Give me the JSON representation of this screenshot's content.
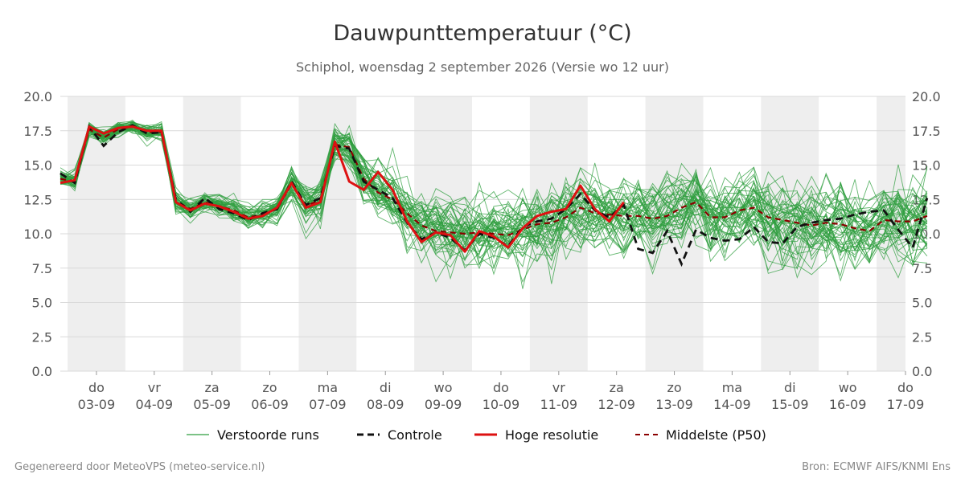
{
  "chart_data": {
    "type": "line",
    "title": "Dauwpunttemperatuur (°C)",
    "subtitle": "Schiphol, woensdag  2 september 2026 (Versie wo 12 uur)",
    "ylim": [
      0,
      20
    ],
    "yticks": [
      "0.0",
      "2.5",
      "5.0",
      "7.5",
      "10.0",
      "12.5",
      "15.0",
      "17.5",
      "20.0"
    ],
    "grid": true,
    "x_start": "2026-09-02T21:00",
    "x_end": "2026-09-17T12:00",
    "x_step_hours": 6,
    "days": [
      {
        "day": "do",
        "date": "03-09"
      },
      {
        "day": "vr",
        "date": "04-09"
      },
      {
        "day": "za",
        "date": "05-09"
      },
      {
        "day": "zo",
        "date": "06-09"
      },
      {
        "day": "ma",
        "date": "07-09"
      },
      {
        "day": "di",
        "date": "08-09"
      },
      {
        "day": "wo",
        "date": "09-09"
      },
      {
        "day": "do",
        "date": "10-09"
      },
      {
        "day": "vr",
        "date": "11-09"
      },
      {
        "day": "za",
        "date": "12-09"
      },
      {
        "day": "zo",
        "date": "13-09"
      },
      {
        "day": "ma",
        "date": "14-09"
      },
      {
        "day": "di",
        "date": "15-09"
      },
      {
        "day": "wo",
        "date": "16-09"
      },
      {
        "day": "do",
        "date": "17-09"
      }
    ],
    "legend": [
      {
        "key": "ensemble",
        "label": "Verstoorde runs"
      },
      {
        "key": "control",
        "label": "Controle"
      },
      {
        "key": "hires",
        "label": "Hoge resolutie"
      },
      {
        "key": "median",
        "label": "Middelste (P50)"
      }
    ],
    "colors": {
      "ensemble": "#2e9e3e",
      "control": "#111111",
      "hires": "#dd1111",
      "median": "#8b0000",
      "shade": "#eeeeee"
    },
    "series": [
      {
        "key": "hires",
        "values": [
          13.7,
          13.9,
          17.8,
          17.3,
          17.7,
          17.8,
          17.5,
          17.5,
          12.3,
          11.7,
          12.2,
          12.0,
          11.6,
          11.1,
          11.3,
          11.9,
          13.7,
          11.9,
          12.3,
          16.7,
          13.8,
          13.2,
          14.5,
          13.2,
          10.9,
          9.4,
          10.1,
          9.9,
          8.7,
          10.2,
          9.8,
          9.0,
          10.4,
          11.3,
          11.6,
          11.8,
          13.5,
          11.8,
          10.9,
          12.3
        ]
      },
      {
        "key": "control",
        "values": [
          14.4,
          13.7,
          17.8,
          16.4,
          17.4,
          17.9,
          17.3,
          17.4,
          12.5,
          11.6,
          12.6,
          11.8,
          11.5,
          11.0,
          11.5,
          11.8,
          13.8,
          12.1,
          12.6,
          16.4,
          16.2,
          13.8,
          13.2,
          12.6,
          10.8,
          9.6,
          10.1,
          9.7,
          8.8,
          10.0,
          9.7,
          9.1,
          10.5,
          10.9,
          11.1,
          11.8,
          12.9,
          11.7,
          11.2,
          12.1,
          8.9,
          8.6,
          10.2,
          7.8,
          10.3,
          9.7,
          9.5,
          9.6,
          10.5,
          9.4,
          9.3,
          10.5,
          10.8,
          11.0,
          11.1,
          11.4,
          11.6,
          11.7,
          10.3,
          9.0,
          12.6
        ]
      },
      {
        "key": "median",
        "values": [
          14.0,
          13.8,
          17.6,
          17.0,
          17.6,
          17.8,
          17.4,
          17.4,
          12.4,
          11.8,
          12.3,
          12.0,
          11.7,
          11.2,
          11.4,
          11.8,
          13.6,
          12.0,
          12.5,
          16.5,
          16.3,
          14.0,
          13.0,
          12.5,
          11.5,
          10.6,
          10.2,
          10.1,
          10.0,
          10.1,
          10.0,
          9.9,
          10.3,
          10.7,
          10.8,
          11.2,
          11.9,
          11.5,
          11.4,
          11.3,
          11.3,
          11.1,
          11.3,
          11.9,
          12.3,
          11.2,
          11.2,
          11.7,
          11.9,
          11.2,
          11.0,
          10.8,
          10.6,
          10.8,
          10.7,
          10.4,
          10.2,
          11.0,
          10.9,
          10.9,
          11.3
        ]
      }
    ],
    "ensemble": {
      "member_count": 50,
      "spread_sd": [
        0.5,
        0.5,
        0.4,
        0.4,
        0.4,
        0.4,
        0.5,
        0.5,
        0.6,
        0.6,
        0.6,
        0.6,
        0.7,
        0.7,
        0.7,
        0.8,
        1.0,
        1.0,
        1.1,
        1.2,
        1.4,
        1.5,
        1.6,
        1.7,
        1.8,
        1.9,
        2.0,
        2.0,
        2.0,
        2.0,
        2.0,
        2.0,
        2.0,
        2.0,
        2.0,
        2.0,
        2.0,
        2.0,
        2.0,
        2.0,
        2.1,
        2.1,
        2.1,
        2.1,
        2.2,
        2.2,
        2.2,
        2.2,
        2.2,
        2.2,
        2.3,
        2.3,
        2.3,
        2.3,
        2.3,
        2.3,
        2.3,
        2.3,
        2.4,
        2.4,
        2.4
      ]
    }
  },
  "footer": {
    "left": "Gegenereerd door MeteoVPS (meteo-service.nl)",
    "right": "Bron: ECMWF AIFS/KNMI Ens"
  }
}
